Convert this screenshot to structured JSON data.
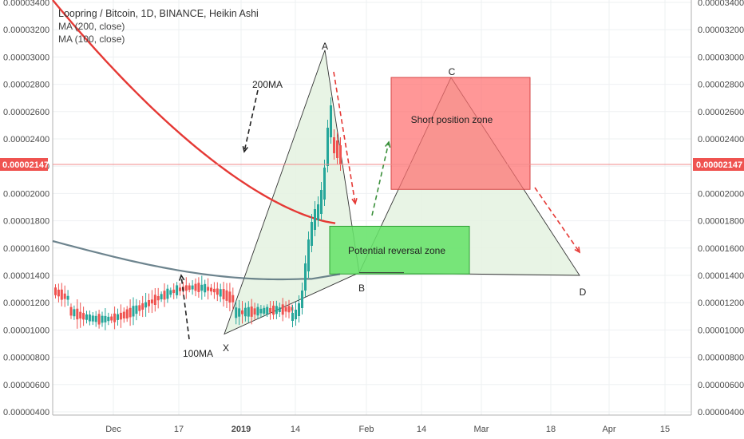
{
  "header": {
    "title": "Loopring / Bitcoin, 1D, BINANCE, Heikin Ashi",
    "ma200_label": "MA (200, close)",
    "ma100_label": "MA (100, close)"
  },
  "last_price": "0.00002147",
  "colors": {
    "up": "#26a69a",
    "down": "#ef5350",
    "ma200": "#e53935",
    "ma100": "#546e7a",
    "grid": "#eef0f2",
    "short_zone": "#ff6f6f",
    "reversal_zone": "#66e36a",
    "pattern_fill": "#e4f2e0"
  },
  "chart_data": {
    "type": "candlestick",
    "title": "Loopring / Bitcoin, 1D, BINANCE, Heikin Ashi",
    "xlabel": "",
    "ylabel": "",
    "ylim": [
      3.6e-06,
      3.4e-06
    ],
    "x_tick_labels": [
      "Dec",
      "17",
      "2019",
      "14",
      "Feb",
      "14",
      "Mar",
      "18",
      "Apr",
      "15"
    ],
    "y_tick_labels": [
      "0.00000400",
      "0.00000600",
      "0.00000800",
      "0.00001000",
      "0.00001200",
      "0.00001400",
      "0.00001600",
      "0.00001800",
      "0.00002000",
      "0.00002200",
      "0.00002400",
      "0.00002600",
      "0.00002800",
      "0.00003000",
      "0.00003200",
      "0.00003400"
    ],
    "series": [
      {
        "name": "MA (200, close)",
        "type": "line"
      },
      {
        "name": "MA (100, close)",
        "type": "line"
      }
    ],
    "harmonic_points": [
      {
        "label": "X",
        "value": 9.7e-06
      },
      {
        "label": "A",
        "value": 3.05e-05
      },
      {
        "label": "B",
        "value": 1.42e-05
      },
      {
        "label": "C",
        "value": 2.85e-05
      },
      {
        "label": "D",
        "value": 1.4e-05
      }
    ],
    "zones": [
      {
        "label": "Short position zone",
        "y_top": 2.85e-05,
        "y_bottom": 2.03e-05
      },
      {
        "label": "Potential reversal zone",
        "y_top": 1.76e-05,
        "y_bottom": 1.41e-05
      }
    ],
    "annotations": [
      "200MA",
      "100MA"
    ]
  }
}
